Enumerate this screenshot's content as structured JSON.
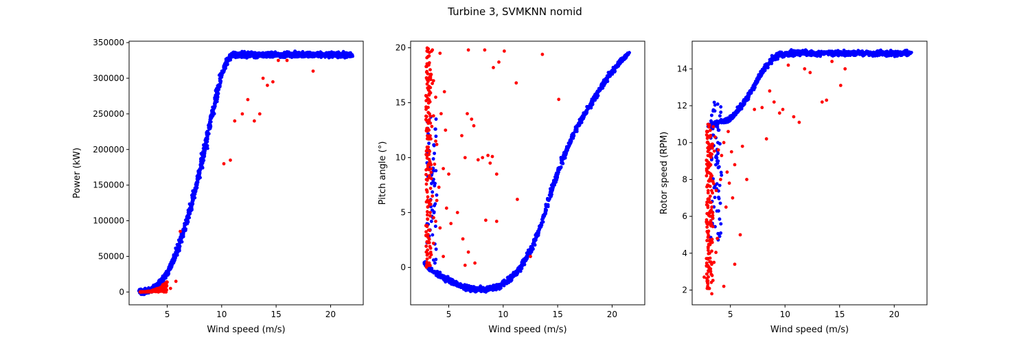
{
  "figure": {
    "title": "Turbine 3, SVMKNN nomid"
  },
  "colors": {
    "normal": "#0000ff",
    "anomaly": "#ff0000",
    "axis": "#000000"
  },
  "chart_data": [
    {
      "type": "scatter",
      "xlabel": "Wind speed (m/s)",
      "ylabel": "Power (kW)",
      "xlim": [
        1.5,
        23
      ],
      "ylim": [
        -18000,
        352000
      ],
      "xticks": [
        5,
        10,
        15,
        20
      ],
      "yticks": [
        0,
        50000,
        100000,
        150000,
        200000,
        250000,
        300000,
        350000
      ],
      "grid": false,
      "curve_normal": [
        [
          2.5,
          0
        ],
        [
          3,
          1000
        ],
        [
          3.5,
          3000
        ],
        [
          4,
          8000
        ],
        [
          4.5,
          16000
        ],
        [
          5,
          27000
        ],
        [
          5.5,
          42000
        ],
        [
          6,
          62000
        ],
        [
          6.5,
          85000
        ],
        [
          7,
          110000
        ],
        [
          7.5,
          140000
        ],
        [
          8,
          170000
        ],
        [
          8.5,
          205000
        ],
        [
          9,
          240000
        ],
        [
          9.5,
          275000
        ],
        [
          10,
          305000
        ],
        [
          10.5,
          325000
        ],
        [
          11,
          333000
        ],
        [
          12,
          333000
        ],
        [
          14,
          333000
        ],
        [
          16,
          333000
        ],
        [
          18,
          333000
        ],
        [
          20,
          333000
        ],
        [
          22,
          333000
        ]
      ],
      "anomaly_points": [
        [
          2.6,
          0
        ],
        [
          3,
          0
        ],
        [
          3.4,
          0
        ],
        [
          4.2,
          0
        ],
        [
          4.7,
          0
        ],
        [
          5.3,
          5000
        ],
        [
          5.8,
          15000
        ],
        [
          6.2,
          85000
        ],
        [
          11.2,
          240000
        ],
        [
          11.9,
          250000
        ],
        [
          12.4,
          270000
        ],
        [
          13,
          240000
        ],
        [
          13.5,
          250000
        ],
        [
          13.8,
          300000
        ],
        [
          14.2,
          290000
        ],
        [
          14.7,
          295000
        ],
        [
          15.2,
          325000
        ],
        [
          16,
          325000
        ],
        [
          18.4,
          310000
        ],
        [
          10.8,
          185000
        ],
        [
          10.2,
          180000
        ]
      ]
    },
    {
      "type": "scatter",
      "xlabel": "Wind speed (m/s)",
      "ylabel": "Pitch angle (°)",
      "xlim": [
        1.5,
        23
      ],
      "ylim": [
        -3.4,
        20.6
      ],
      "xticks": [
        5,
        10,
        15,
        20
      ],
      "yticks": [
        0,
        5,
        10,
        15,
        20
      ],
      "grid": false,
      "curve_normal": [
        [
          2.8,
          0.5
        ],
        [
          3.5,
          -0.3
        ],
        [
          4.5,
          -0.9
        ],
        [
          5.5,
          -1.4
        ],
        [
          6.5,
          -1.8
        ],
        [
          7.5,
          -2
        ],
        [
          8.5,
          -2
        ],
        [
          9.5,
          -1.8
        ],
        [
          10.5,
          -1.2
        ],
        [
          11.5,
          -0.2
        ],
        [
          12.5,
          1.5
        ],
        [
          13.5,
          4
        ],
        [
          14.5,
          7.2
        ],
        [
          15.5,
          10
        ],
        [
          16.5,
          12.2
        ],
        [
          17.5,
          14
        ],
        [
          18.5,
          15.6
        ],
        [
          19.5,
          17.2
        ],
        [
          20.5,
          18.5
        ],
        [
          21.5,
          19.5
        ]
      ],
      "anomaly_points": [
        [
          3,
          19.7
        ],
        [
          3.1,
          19.2
        ],
        [
          3.3,
          18
        ],
        [
          3.6,
          17
        ],
        [
          3.2,
          15.7
        ],
        [
          3.6,
          13.8
        ],
        [
          3,
          12.6
        ],
        [
          3.8,
          11.5
        ],
        [
          3.2,
          10.6
        ],
        [
          3.7,
          9.4
        ],
        [
          3.4,
          8.1
        ],
        [
          3,
          7
        ],
        [
          3.9,
          6.1
        ],
        [
          3.3,
          5
        ],
        [
          3.8,
          4.2
        ],
        [
          3.1,
          3
        ],
        [
          3.6,
          2.2
        ],
        [
          4.5,
          1
        ],
        [
          4.2,
          3.6
        ],
        [
          4.8,
          5.4
        ],
        [
          4.1,
          7.3
        ],
        [
          4.5,
          9
        ],
        [
          3.9,
          11.2
        ],
        [
          4.7,
          12.5
        ],
        [
          4.3,
          14
        ],
        [
          5,
          8.5
        ],
        [
          5.8,
          5
        ],
        [
          4.6,
          16
        ],
        [
          5.2,
          4
        ],
        [
          6.5,
          0.2
        ],
        [
          6.8,
          19.8
        ],
        [
          8.3,
          19.8
        ],
        [
          9.1,
          18.2
        ],
        [
          10.1,
          19.7
        ],
        [
          9.6,
          18.7
        ],
        [
          11.2,
          16.8
        ],
        [
          8.1,
          10
        ],
        [
          8.6,
          10.2
        ],
        [
          9,
          10.1
        ],
        [
          8.8,
          9.5
        ],
        [
          9.4,
          8.5
        ],
        [
          7.7,
          9.8
        ],
        [
          6.5,
          10
        ],
        [
          6.2,
          12
        ],
        [
          6.7,
          14
        ],
        [
          7.1,
          13.5
        ],
        [
          7.3,
          12.9
        ],
        [
          8.4,
          4.3
        ],
        [
          9.4,
          4.2
        ],
        [
          11.3,
          6.2
        ],
        [
          12.5,
          1
        ],
        [
          13.6,
          19.4
        ],
        [
          15.1,
          15.3
        ],
        [
          6.3,
          2.6
        ],
        [
          7.4,
          0.4
        ],
        [
          6.8,
          1.4
        ],
        [
          4.2,
          19.5
        ],
        [
          3.5,
          19.8
        ],
        [
          3.8,
          15.5
        ],
        [
          3.2,
          11.8
        ],
        [
          3.5,
          6.5
        ]
      ]
    },
    {
      "type": "scatter",
      "xlabel": "Wind speed (m/s)",
      "ylabel": "Rotor speed (RPM)",
      "xlim": [
        1.5,
        23
      ],
      "ylim": [
        1.2,
        15.5
      ],
      "xticks": [
        5,
        10,
        15,
        20
      ],
      "yticks": [
        2,
        4,
        6,
        8,
        10,
        12,
        14
      ],
      "grid": false,
      "curve_normal": [
        [
          3,
          10.9
        ],
        [
          4,
          11.1
        ],
        [
          5,
          11.3
        ],
        [
          5.5,
          11.6
        ],
        [
          6,
          12
        ],
        [
          6.5,
          12.4
        ],
        [
          7,
          12.9
        ],
        [
          7.5,
          13.4
        ],
        [
          8,
          13.9
        ],
        [
          8.5,
          14.3
        ],
        [
          9,
          14.6
        ],
        [
          9.5,
          14.75
        ],
        [
          10,
          14.8
        ],
        [
          11,
          14.85
        ],
        [
          12,
          14.85
        ],
        [
          14,
          14.85
        ],
        [
          16,
          14.85
        ],
        [
          18,
          14.85
        ],
        [
          20,
          14.85
        ],
        [
          21.5,
          14.85
        ]
      ],
      "anomaly_points": [
        [
          2.8,
          5.7
        ],
        [
          2.6,
          2.7
        ],
        [
          2.9,
          2.4
        ],
        [
          3.3,
          1.8
        ],
        [
          3.1,
          4
        ],
        [
          3.5,
          3.5
        ],
        [
          3,
          5.2
        ],
        [
          3.8,
          4.8
        ],
        [
          3.3,
          6.5
        ],
        [
          3.7,
          7.4
        ],
        [
          4.1,
          8
        ],
        [
          3.2,
          8.8
        ],
        [
          3.9,
          9.6
        ],
        [
          4.4,
          10
        ],
        [
          4.8,
          10.6
        ],
        [
          5.1,
          9.5
        ],
        [
          5.4,
          8.8
        ],
        [
          4.9,
          7.8
        ],
        [
          5.2,
          7
        ],
        [
          4.6,
          6.5
        ],
        [
          5.9,
          5
        ],
        [
          5.4,
          3.4
        ],
        [
          4.4,
          2.2
        ],
        [
          6.5,
          8
        ],
        [
          6.1,
          9.8
        ],
        [
          7.2,
          11.8
        ],
        [
          7.9,
          11.9
        ],
        [
          8.6,
          12.8
        ],
        [
          8.3,
          10.2
        ],
        [
          9,
          12.2
        ],
        [
          9.5,
          11.6
        ],
        [
          10.8,
          11.4
        ],
        [
          11.3,
          11.1
        ],
        [
          11.8,
          14
        ],
        [
          12.3,
          13.8
        ],
        [
          13.4,
          12.2
        ],
        [
          13.8,
          12.3
        ],
        [
          14.3,
          14.4
        ],
        [
          15.1,
          13.1
        ],
        [
          15.5,
          14
        ],
        [
          10.3,
          14.2
        ],
        [
          9.8,
          11.8
        ],
        [
          3.6,
          10.3
        ],
        [
          4.2,
          9.3
        ],
        [
          4.7,
          8.4
        ],
        [
          3.4,
          7.9
        ]
      ]
    }
  ]
}
